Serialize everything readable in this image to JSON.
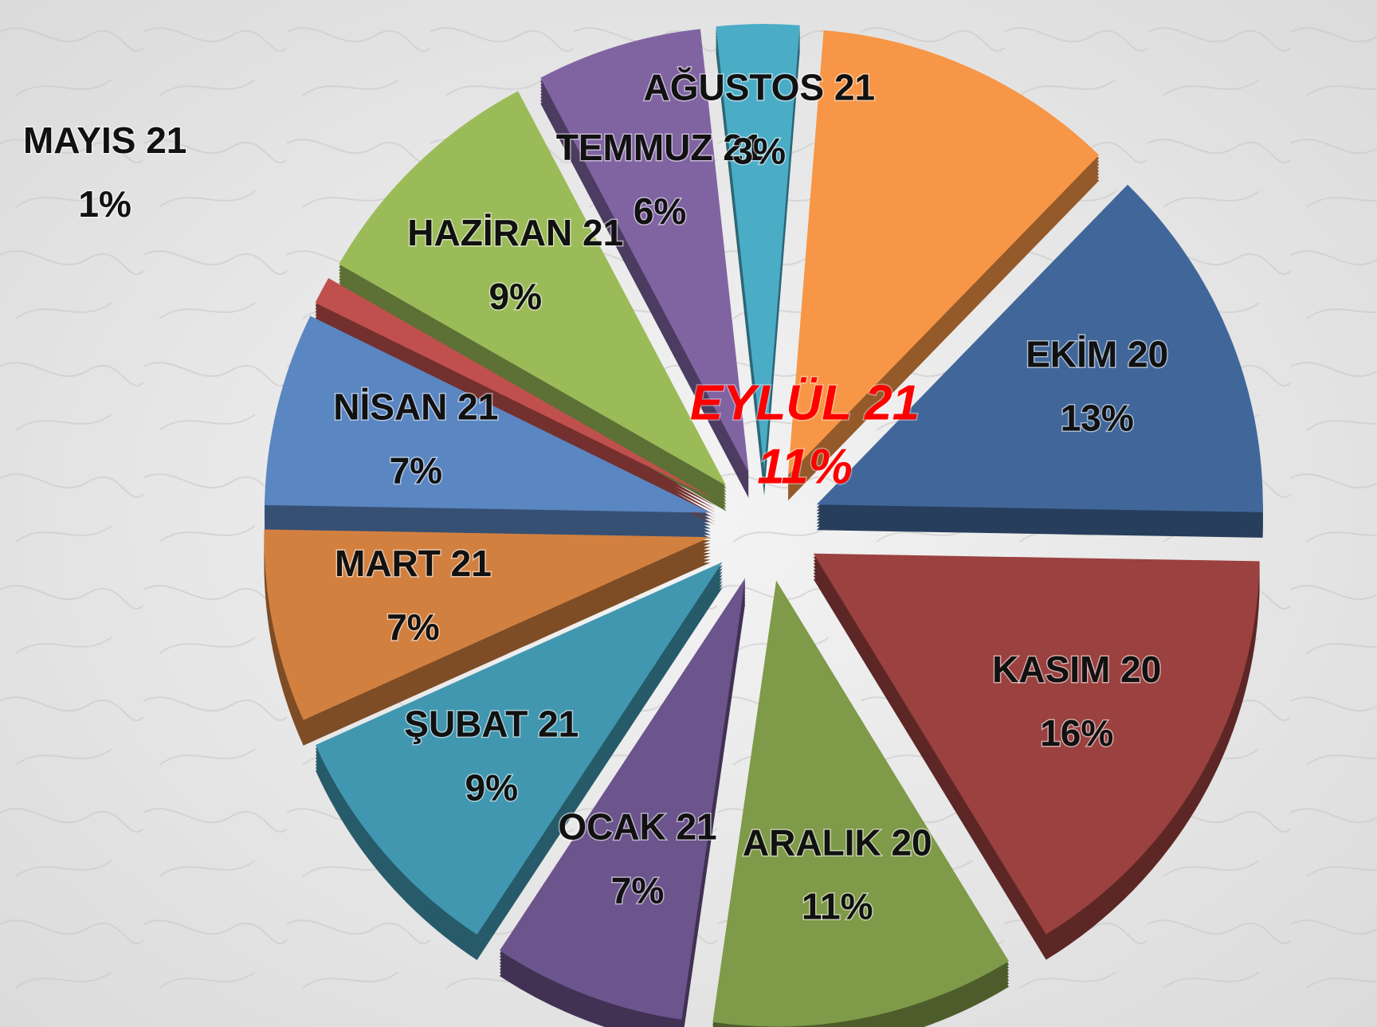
{
  "chart_data": {
    "type": "pie",
    "categories": [
      "EYLÜL 21",
      "EKİM 20",
      "KASIM 20",
      "ARALIK 20",
      "OCAK 21",
      "ŞUBAT 21",
      "MART 21",
      "NİSAN 21",
      "MAYIS 21",
      "HAZİRAN 21",
      "TEMMUZ 21",
      "AĞUSTOS 21"
    ],
    "values": [
      11,
      13,
      16,
      11,
      7,
      9,
      7,
      7,
      1,
      9,
      6,
      3
    ],
    "value_labels": [
      "11%",
      "13%",
      "16%",
      "11%",
      "7%",
      "9%",
      "7%",
      "7%",
      "1%",
      "9%",
      "6%",
      "3%"
    ],
    "colors": [
      "#f79646",
      "#41679a",
      "#9b4140",
      "#7f9a48",
      "#6c548c",
      "#4197b0",
      "#d28040",
      "#5a86c2",
      "#c0504d",
      "#9bbb59",
      "#8064a2",
      "#4bacc6"
    ]
  }
}
